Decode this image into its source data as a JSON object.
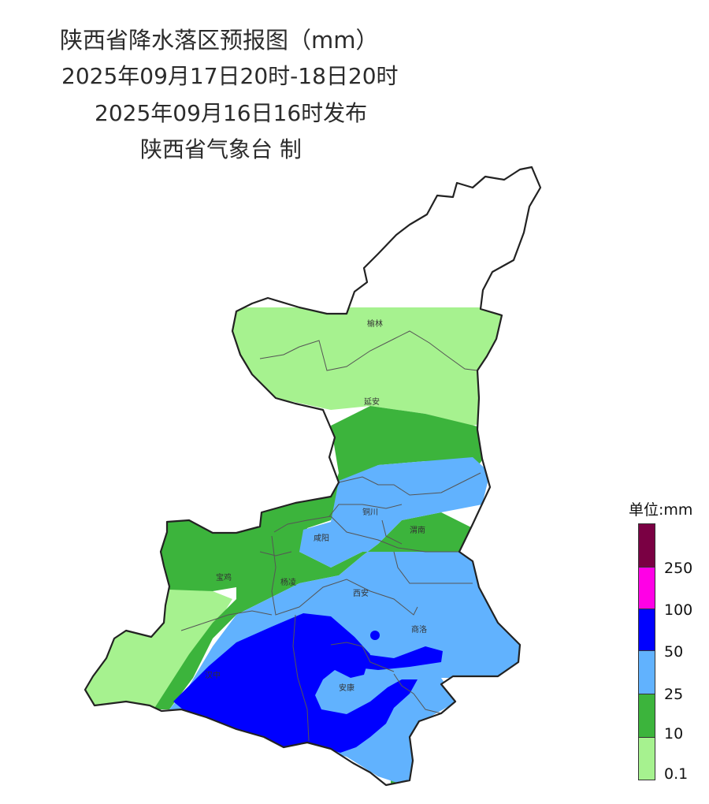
{
  "header": {
    "title": "陕西省降水落区预报图（mm）",
    "period": "2025年09月17日20时-18日20时",
    "issued": "2025年09月16日16时发布",
    "publisher": "陕西省气象台 制"
  },
  "cities": [
    {
      "id": "yulin",
      "name": "榆林"
    },
    {
      "id": "yanan",
      "name": "延安"
    },
    {
      "id": "tongchuan",
      "name": "铜川"
    },
    {
      "id": "xianyang",
      "name": "咸阳"
    },
    {
      "id": "weinan",
      "name": "渭南"
    },
    {
      "id": "baoji",
      "name": "宝鸡"
    },
    {
      "id": "yangling",
      "name": "杨凌"
    },
    {
      "id": "xian",
      "name": "西安"
    },
    {
      "id": "shangluo",
      "name": "商洛"
    },
    {
      "id": "hanzhong",
      "name": "汉中"
    },
    {
      "id": "ankang",
      "name": "安康"
    }
  ],
  "legend": {
    "title": "单位:mm",
    "levels": [
      {
        "label": "250",
        "color": "#7a0043"
      },
      {
        "label": "100",
        "color": "#ff00e6"
      },
      {
        "label": "50",
        "color": "#0000ff"
      },
      {
        "label": "25",
        "color": "#61b2fe"
      },
      {
        "label": "10",
        "color": "#3cb43c"
      },
      {
        "label": "0.1",
        "color": "#a6f28f"
      }
    ]
  }
}
